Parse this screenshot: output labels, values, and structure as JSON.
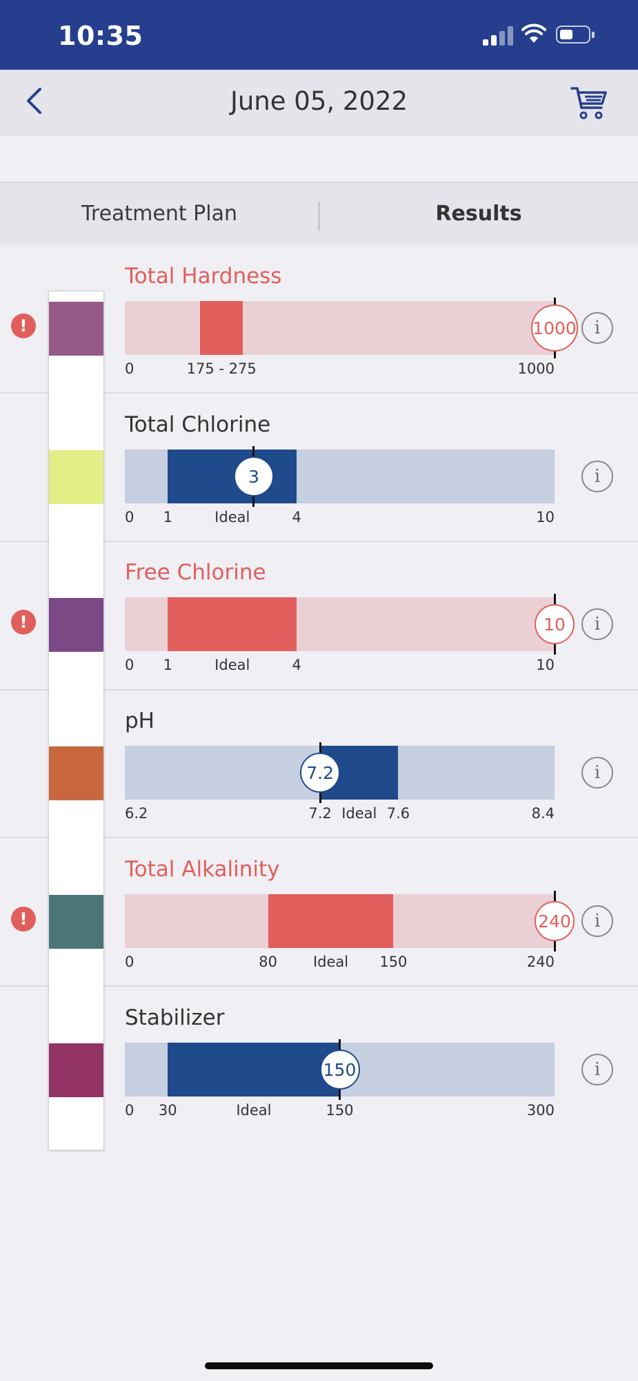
{
  "status_bar": {
    "time": "10:35"
  },
  "nav": {
    "title": "June 05, 2022",
    "back_icon": "chevron-left-icon",
    "cart_icon": "cart-icon"
  },
  "tabs": [
    {
      "label": "Treatment Plan",
      "active": false
    },
    {
      "label": "Results",
      "active": true
    }
  ],
  "colors": {
    "brand": "#253f8e",
    "alert": "#e05f5c",
    "alert_track": "#ead0d5",
    "ok_fill": "#1f4a8c",
    "ok_track": "#c5cfe0"
  },
  "results": [
    {
      "name": "Total Hardness",
      "status": "alert",
      "pad_color": "#965a88",
      "value": "1000",
      "range": [
        0,
        1000
      ],
      "ideal": [
        175,
        275
      ],
      "ideal_caption": "175  -  275",
      "ticks": [
        "0",
        "1000"
      ],
      "position": 1.0
    },
    {
      "name": "Total Chlorine",
      "status": "ok",
      "pad_color": "#e2ee86",
      "value": "3",
      "range": [
        0,
        10
      ],
      "ideal": [
        1,
        4
      ],
      "ideal_caption": "Ideal",
      "ticks": [
        "0",
        "1",
        "4",
        "10"
      ],
      "position": 0.3
    },
    {
      "name": "Free Chlorine",
      "status": "alert",
      "pad_color": "#7a4986",
      "value": "10",
      "range": [
        0,
        10
      ],
      "ideal": [
        1,
        4
      ],
      "ideal_caption": "Ideal",
      "ticks": [
        "0",
        "1",
        "4",
        "10"
      ],
      "position": 1.0
    },
    {
      "name": "pH",
      "status": "ok",
      "pad_color": "#c7663f",
      "value": "7.2",
      "range": [
        6.2,
        8.4
      ],
      "ideal": [
        7.2,
        7.6
      ],
      "ideal_caption": "Ideal",
      "ticks": [
        "6.2",
        "7.2",
        "7.6",
        "8.4"
      ],
      "position": 0.4545
    },
    {
      "name": "Total Alkalinity",
      "status": "alert",
      "pad_color": "#4a7678",
      "value": "240",
      "range": [
        0,
        240
      ],
      "ideal": [
        80,
        150
      ],
      "ideal_caption": "Ideal",
      "ticks": [
        "0",
        "80",
        "150",
        "240"
      ],
      "position": 1.0
    },
    {
      "name": "Stabilizer",
      "status": "ok",
      "pad_color": "#923566",
      "value": "150",
      "range": [
        0,
        300
      ],
      "ideal": [
        30,
        150
      ],
      "ideal_caption": "Ideal",
      "ticks": [
        "0",
        "30",
        "150",
        "300"
      ],
      "position": 0.5
    }
  ],
  "alert_mark": "!",
  "info_mark": "i"
}
